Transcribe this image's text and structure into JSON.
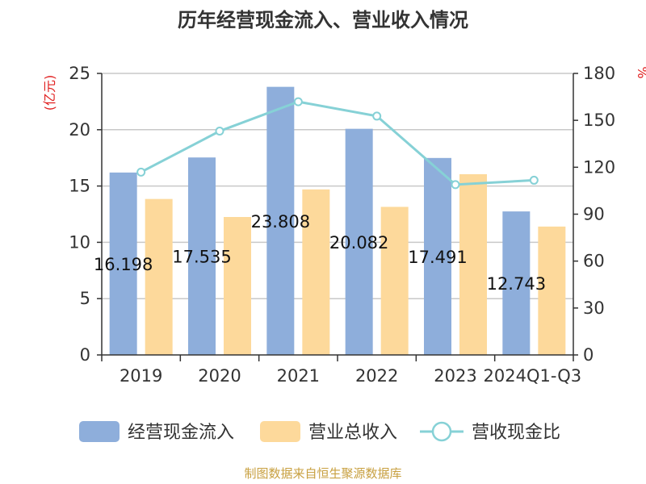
{
  "chart_data": {
    "type": "bar",
    "title": "历年经营现金流入、营业收入情况",
    "categories": [
      "2019",
      "2020",
      "2021",
      "2022",
      "2023",
      "2024Q1-Q3"
    ],
    "series": [
      {
        "name": "经营现金流入",
        "axis": "left",
        "kind": "bar",
        "color": "#8eaedb",
        "values": [
          16.198,
          17.535,
          23.808,
          20.082,
          17.491,
          12.743
        ],
        "labels": [
          "16.198",
          "17.535",
          "23.808",
          "20.082",
          "17.491",
          "12.743"
        ]
      },
      {
        "name": "营业总收入",
        "axis": "left",
        "kind": "bar",
        "color": "#fdd99b",
        "values": [
          13.85,
          12.25,
          14.7,
          13.15,
          16.05,
          11.4
        ]
      },
      {
        "name": "营收现金比",
        "axis": "right",
        "kind": "line",
        "color": "#86d1d6",
        "values": [
          116.9,
          143.1,
          161.9,
          152.7,
          108.9,
          111.7
        ]
      }
    ],
    "left_axis": {
      "unit": "(亿元)",
      "min": 0,
      "max": 25,
      "ticks": [
        "0",
        "5",
        "10",
        "15",
        "20",
        "25"
      ]
    },
    "right_axis": {
      "unit": "%",
      "min": 0,
      "max": 180,
      "ticks": [
        "0",
        "30",
        "60",
        "90",
        "120",
        "150",
        "180"
      ]
    },
    "legend": [
      "经营现金流入",
      "营业总收入",
      "营收现金比"
    ],
    "source": "制图数据来自恒生聚源数据库"
  }
}
